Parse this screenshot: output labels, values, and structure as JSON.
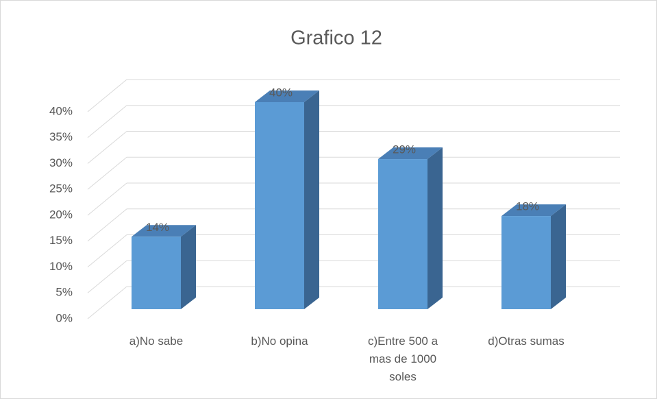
{
  "chart_data": {
    "type": "bar3d",
    "title": "Grafico 12",
    "categories": [
      "a)No sabe",
      "b)No opina",
      "c)Entre 500 a mas de 1000 soles",
      "d)Otras sumas"
    ],
    "values": [
      14,
      40,
      29,
      18
    ],
    "value_labels": [
      "14%",
      "40%",
      "29%",
      "18%"
    ],
    "color": "#5b9bd5",
    "ylim": [
      0,
      40
    ],
    "yticks": [
      {
        "value": 0,
        "label": "0%"
      },
      {
        "value": 5,
        "label": "5%"
      },
      {
        "value": 10,
        "label": "10%"
      },
      {
        "value": 15,
        "label": "15%"
      },
      {
        "value": 20,
        "label": "20%"
      },
      {
        "value": 25,
        "label": "25%"
      },
      {
        "value": 30,
        "label": "30%"
      },
      {
        "value": 35,
        "label": "35%"
      },
      {
        "value": 40,
        "label": "40%"
      }
    ],
    "grid": true
  }
}
